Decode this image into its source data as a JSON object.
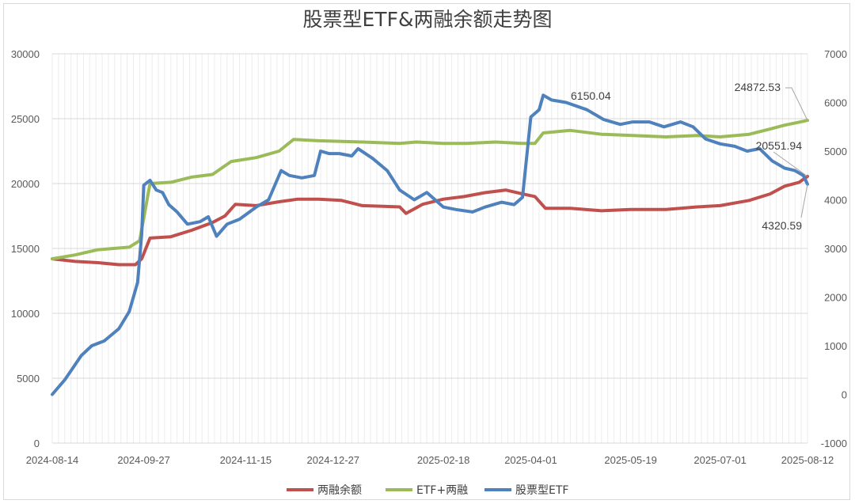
{
  "chart_data": {
    "type": "line",
    "title": "股票型ETF&两融余额走势图",
    "x_tick_labels": [
      "2024-08-14",
      "2024-09-27",
      "2024-11-15",
      "2024-12-27",
      "2025-02-18",
      "2025-04-01",
      "2025-05-19",
      "2025-07-01",
      "2025-08-12"
    ],
    "x_range": [
      "2024-08-14",
      "2025-08-12"
    ],
    "left_axis": {
      "ylim": [
        0,
        30000
      ],
      "ticks": [
        "0",
        "5000",
        "10000",
        "15000",
        "20000",
        "25000",
        "30000"
      ]
    },
    "right_axis": {
      "ylim": [
        -1000,
        7000
      ],
      "ticks": [
        "-1000",
        "0",
        "1000",
        "2000",
        "3000",
        "4000",
        "5000",
        "6000",
        "7000"
      ]
    },
    "grid": true,
    "legend_position": "bottom",
    "series": [
      {
        "name": "两融余额",
        "axis": "left",
        "color": "#c0504d",
        "points": [
          [
            "2024-08-14",
            14200
          ],
          [
            "2024-08-25",
            14000
          ],
          [
            "2024-09-05",
            13900
          ],
          [
            "2024-09-15",
            13750
          ],
          [
            "2024-09-23",
            13750
          ],
          [
            "2024-09-26",
            14200
          ],
          [
            "2024-09-30",
            15800
          ],
          [
            "2024-10-10",
            15900
          ],
          [
            "2024-10-20",
            16400
          ],
          [
            "2024-10-30",
            17000
          ],
          [
            "2024-11-05",
            17500
          ],
          [
            "2024-11-10",
            18400
          ],
          [
            "2024-11-20",
            18300
          ],
          [
            "2024-12-01",
            18600
          ],
          [
            "2024-12-10",
            18800
          ],
          [
            "2024-12-20",
            18800
          ],
          [
            "2024-12-31",
            18700
          ],
          [
            "2025-01-10",
            18300
          ],
          [
            "2025-01-20",
            18250
          ],
          [
            "2025-01-28",
            18200
          ],
          [
            "2025-01-31",
            17700
          ],
          [
            "2025-02-08",
            18400
          ],
          [
            "2025-02-18",
            18800
          ],
          [
            "2025-02-28",
            19000
          ],
          [
            "2025-03-10",
            19300
          ],
          [
            "2025-03-20",
            19500
          ],
          [
            "2025-03-28",
            19200
          ],
          [
            "2025-04-03",
            19000
          ],
          [
            "2025-04-08",
            18100
          ],
          [
            "2025-04-20",
            18100
          ],
          [
            "2025-05-05",
            17900
          ],
          [
            "2025-05-19",
            18000
          ],
          [
            "2025-06-05",
            18000
          ],
          [
            "2025-06-20",
            18200
          ],
          [
            "2025-07-01",
            18300
          ],
          [
            "2025-07-15",
            18700
          ],
          [
            "2025-07-25",
            19200
          ],
          [
            "2025-08-01",
            19800
          ],
          [
            "2025-08-08",
            20100
          ],
          [
            "2025-08-12",
            20551.94
          ]
        ]
      },
      {
        "name": "ETF+两融",
        "axis": "left",
        "color": "#9bbb59",
        "points": [
          [
            "2024-08-14",
            14200
          ],
          [
            "2024-08-25",
            14500
          ],
          [
            "2024-09-05",
            14900
          ],
          [
            "2024-09-20",
            15100
          ],
          [
            "2024-09-25",
            15600
          ],
          [
            "2024-09-30",
            20000
          ],
          [
            "2024-10-10",
            20100
          ],
          [
            "2024-10-20",
            20500
          ],
          [
            "2024-10-30",
            20700
          ],
          [
            "2024-11-08",
            21700
          ],
          [
            "2024-11-20",
            22000
          ],
          [
            "2024-12-01",
            22500
          ],
          [
            "2024-12-08",
            23400
          ],
          [
            "2024-12-20",
            23300
          ],
          [
            "2025-01-10",
            23200
          ],
          [
            "2025-01-28",
            23100
          ],
          [
            "2025-02-05",
            23200
          ],
          [
            "2025-02-18",
            23100
          ],
          [
            "2025-03-01",
            23100
          ],
          [
            "2025-03-15",
            23200
          ],
          [
            "2025-03-28",
            23100
          ],
          [
            "2025-04-03",
            23100
          ],
          [
            "2025-04-07",
            23900
          ],
          [
            "2025-04-20",
            24100
          ],
          [
            "2025-05-05",
            23800
          ],
          [
            "2025-05-20",
            23700
          ],
          [
            "2025-06-05",
            23600
          ],
          [
            "2025-06-20",
            23700
          ],
          [
            "2025-07-01",
            23600
          ],
          [
            "2025-07-15",
            23800
          ],
          [
            "2025-07-25",
            24200
          ],
          [
            "2025-08-01",
            24500
          ],
          [
            "2025-08-10",
            24800
          ],
          [
            "2025-08-12",
            24872.53
          ]
        ]
      },
      {
        "name": "股票型ETF",
        "axis": "right",
        "color": "#4f81bd",
        "points": [
          [
            "2024-08-14",
            0
          ],
          [
            "2024-08-20",
            300
          ],
          [
            "2024-08-28",
            800
          ],
          [
            "2024-09-02",
            1000
          ],
          [
            "2024-09-08",
            1100
          ],
          [
            "2024-09-15",
            1350
          ],
          [
            "2024-09-20",
            1700
          ],
          [
            "2024-09-24",
            2300
          ],
          [
            "2024-09-26",
            3300
          ],
          [
            "2024-09-27",
            4300
          ],
          [
            "2024-09-30",
            4400
          ],
          [
            "2024-10-03",
            4200
          ],
          [
            "2024-10-06",
            4150
          ],
          [
            "2024-10-09",
            3900
          ],
          [
            "2024-10-13",
            3750
          ],
          [
            "2024-10-18",
            3500
          ],
          [
            "2024-10-24",
            3550
          ],
          [
            "2024-10-28",
            3650
          ],
          [
            "2024-11-01",
            3250
          ],
          [
            "2024-11-06",
            3500
          ],
          [
            "2024-11-12",
            3600
          ],
          [
            "2024-11-20",
            3850
          ],
          [
            "2024-11-26",
            4000
          ],
          [
            "2024-12-02",
            4600
          ],
          [
            "2024-12-06",
            4500
          ],
          [
            "2024-12-12",
            4450
          ],
          [
            "2024-12-18",
            4500
          ],
          [
            "2024-12-21",
            5000
          ],
          [
            "2024-12-25",
            4950
          ],
          [
            "2024-12-30",
            4950
          ],
          [
            "2025-01-05",
            4900
          ],
          [
            "2025-01-08",
            5050
          ],
          [
            "2025-01-15",
            4850
          ],
          [
            "2025-01-22",
            4600
          ],
          [
            "2025-01-28",
            4200
          ],
          [
            "2025-02-04",
            4000
          ],
          [
            "2025-02-10",
            4150
          ],
          [
            "2025-02-18",
            3850
          ],
          [
            "2025-02-24",
            3800
          ],
          [
            "2025-03-04",
            3750
          ],
          [
            "2025-03-10",
            3850
          ],
          [
            "2025-03-18",
            3950
          ],
          [
            "2025-03-24",
            3900
          ],
          [
            "2025-03-28",
            4050
          ],
          [
            "2025-04-01",
            5700
          ],
          [
            "2025-04-05",
            5850
          ],
          [
            "2025-04-07",
            6150.04
          ],
          [
            "2025-04-11",
            6050
          ],
          [
            "2025-04-18",
            6000
          ],
          [
            "2025-04-28",
            5850
          ],
          [
            "2025-05-06",
            5650
          ],
          [
            "2025-05-14",
            5550
          ],
          [
            "2025-05-20",
            5600
          ],
          [
            "2025-05-28",
            5600
          ],
          [
            "2025-06-04",
            5500
          ],
          [
            "2025-06-12",
            5600
          ],
          [
            "2025-06-18",
            5500
          ],
          [
            "2025-06-24",
            5250
          ],
          [
            "2025-07-01",
            5150
          ],
          [
            "2025-07-08",
            5100
          ],
          [
            "2025-07-14",
            5000
          ],
          [
            "2025-07-20",
            5050
          ],
          [
            "2025-07-26",
            4800
          ],
          [
            "2025-08-01",
            4650
          ],
          [
            "2025-08-06",
            4600
          ],
          [
            "2025-08-10",
            4500
          ],
          [
            "2025-08-12",
            4320.59
          ]
        ]
      }
    ],
    "data_labels": [
      "6150.04",
      "24872.53",
      "20551.94",
      "4320.59"
    ]
  },
  "colors": {
    "red": "#c0504d",
    "green": "#9bbb59",
    "blue": "#4f81bd",
    "grid": "#d9d9d9"
  }
}
